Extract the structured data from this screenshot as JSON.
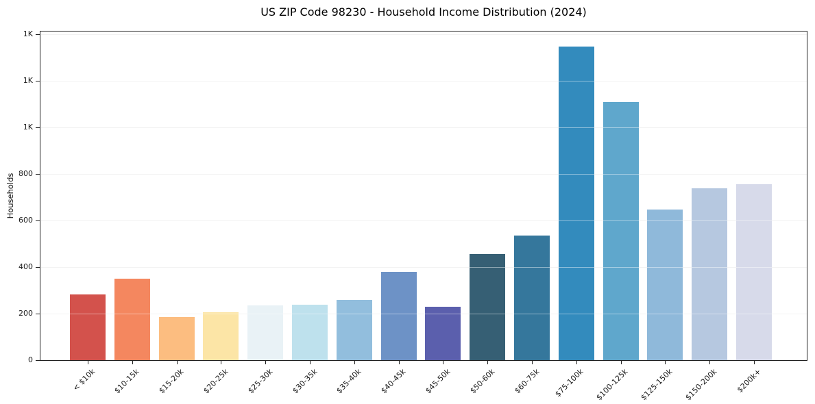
{
  "chart_data": {
    "type": "bar",
    "title": "US ZIP Code 98230 - Household Income Distribution (2024)",
    "xlabel": "",
    "ylabel": "Households",
    "categories": [
      "< $10k",
      "$10-15k",
      "$15-20k",
      "$20-25k",
      "$25-30k",
      "$30-35k",
      "$35-40k",
      "$40-45k",
      "$45-50k",
      "$50-60k",
      "$60-75k",
      "$75-100k",
      "$100-125k",
      "$125-150k",
      "$150-200k",
      "$200k+"
    ],
    "values": [
      281,
      351,
      186,
      207,
      235,
      238,
      259,
      379,
      230,
      456,
      535,
      1347,
      1109,
      647,
      738,
      756
    ],
    "bar_colors": [
      "#d3524c",
      "#f4875f",
      "#fcbd80",
      "#fce5a6",
      "#e9f2f6",
      "#bee1ed",
      "#92bedd",
      "#6d92c6",
      "#5b5fad",
      "#365f74",
      "#35779c",
      "#338bbd",
      "#5fa7cc",
      "#8fb9da",
      "#b6c8e0",
      "#d7daea"
    ],
    "ylim": [
      0,
      1412
    ],
    "y_axis": {
      "tick_values": [
        0,
        200,
        400,
        600,
        800,
        1000,
        1200,
        1400
      ],
      "tick_labels": [
        "0",
        "200",
        "400",
        "600",
        "800",
        "1K",
        "1K",
        "1K"
      ]
    },
    "grid": "horizontal",
    "gridlines_above_bars": true,
    "legend": false,
    "xticklabel_rotation_deg": 45,
    "plot_background": "#ffffff",
    "grid_color": "#e7e7e7",
    "spine_color": "#1f1f1f"
  }
}
